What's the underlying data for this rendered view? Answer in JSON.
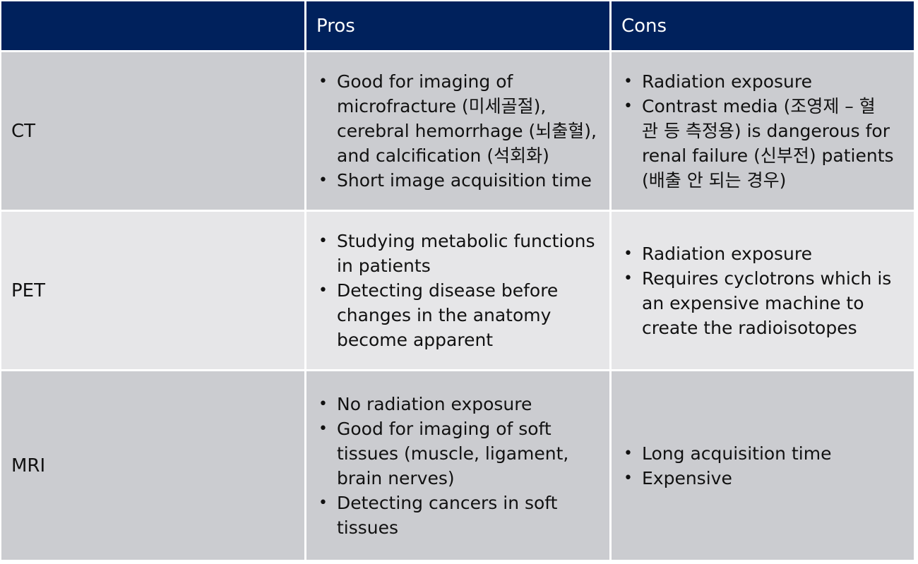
{
  "header": {
    "blank": "",
    "pros": "Pros",
    "cons": "Cons"
  },
  "rows": [
    {
      "label": "CT",
      "pros": [
        "Good for imaging of\nmicrofracture (미세골절),\ncerebral hemorrhage (뇌출혈),\nand calcification (석회화)",
        "Short image acquisition time"
      ],
      "cons": [
        "Radiation exposure",
        "Contrast media (조영제 – 혈\n관 등 측정용) is dangerous for\nrenal failure (신부전) patients\n(배출 안 되는 경우)"
      ]
    },
    {
      "label": "PET",
      "pros": [
        "Studying metabolic functions\nin patients",
        "Detecting disease before\nchanges in the anatomy\nbecome apparent"
      ],
      "cons": [
        "Radiation exposure",
        "Requires cyclotrons which is\nan expensive machine to\ncreate the radioisotopes"
      ]
    },
    {
      "label": "MRI",
      "pros": [
        "No radiation exposure",
        "Good for imaging of soft\ntissues (muscle, ligament,\nbrain nerves)",
        "Detecting cancers in soft\ntissues"
      ],
      "cons": [
        "Long acquisition time",
        "Expensive"
      ]
    }
  ],
  "bullet_glyph": "•",
  "colors": {
    "header_bg": "#00215c",
    "header_text": "#ffffff",
    "row_dark": "#cbccd0",
    "row_light": "#e6e6e8",
    "grid_lines": "#ffffff"
  }
}
